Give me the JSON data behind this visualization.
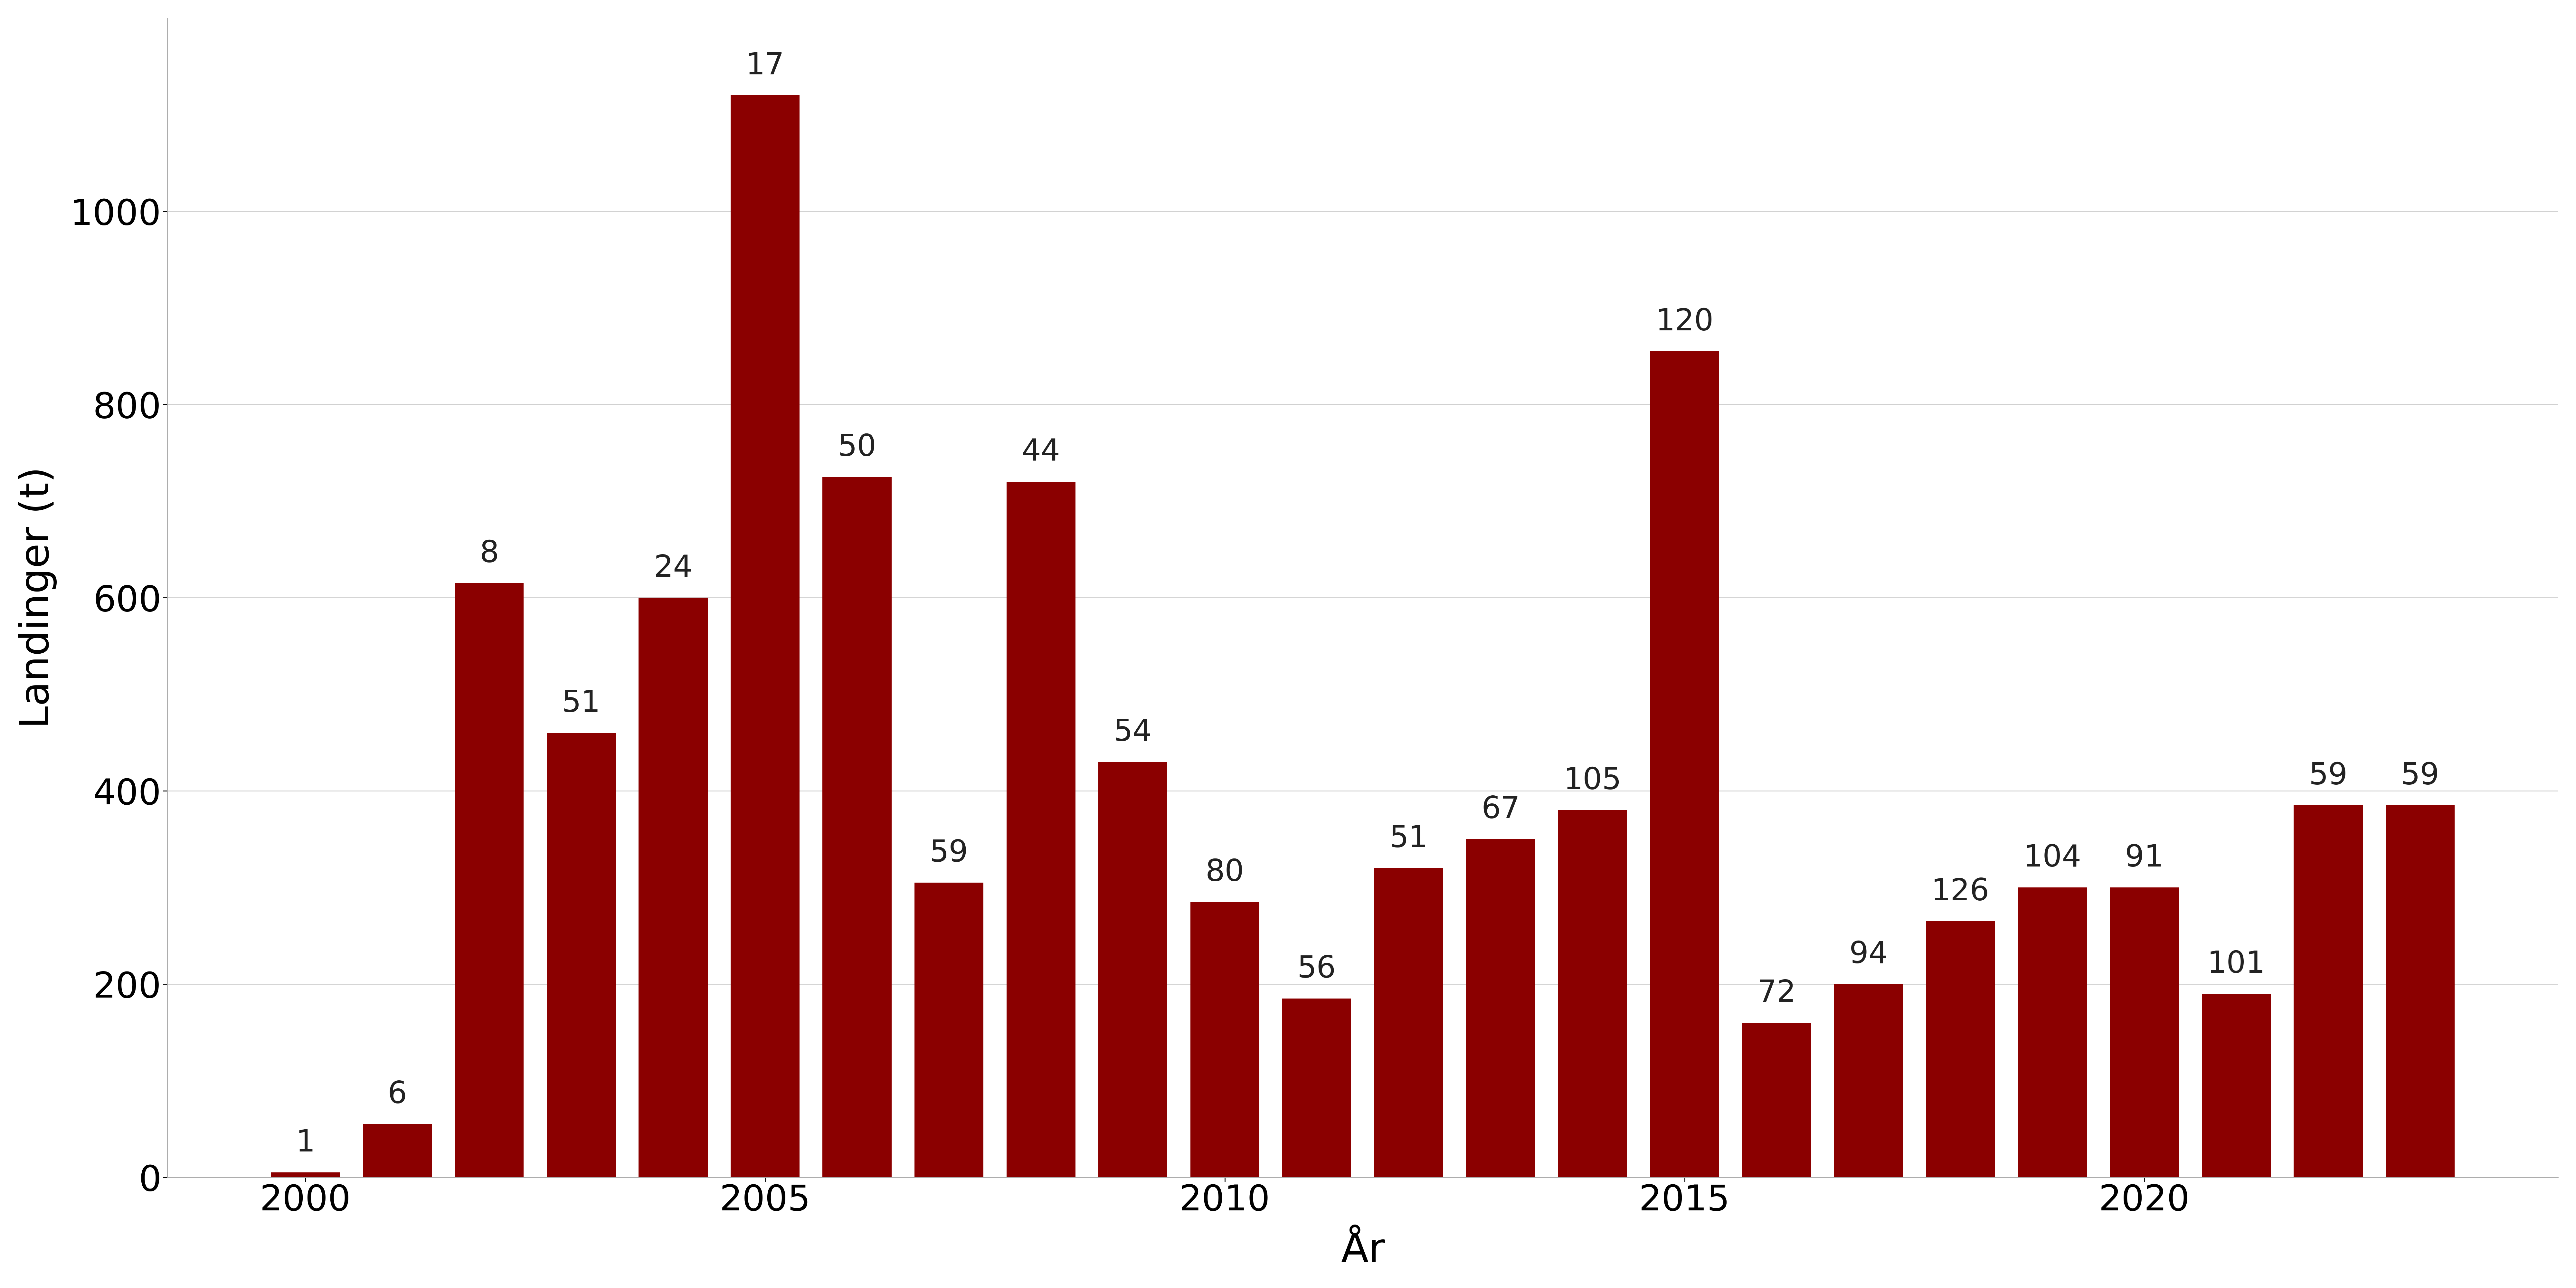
{
  "years": [
    2000,
    2001,
    2002,
    2003,
    2004,
    2005,
    2006,
    2007,
    2008,
    2009,
    2010,
    2011,
    2012,
    2013,
    2014,
    2015,
    2016,
    2017,
    2018,
    2019,
    2020,
    2021,
    2022,
    2023
  ],
  "values": [
    5,
    55,
    615,
    460,
    600,
    1120,
    725,
    305,
    720,
    430,
    285,
    185,
    320,
    350,
    380,
    855,
    160,
    200,
    265,
    300,
    300,
    190,
    385,
    385
  ],
  "vessel_counts": [
    1,
    6,
    8,
    51,
    24,
    17,
    50,
    59,
    44,
    54,
    80,
    56,
    51,
    67,
    105,
    120,
    72,
    94,
    126,
    104,
    91,
    101,
    59,
    59
  ],
  "bar_color": "#8B0000",
  "ylabel": "Landinger (t)",
  "xlabel": "År",
  "ylim": [
    0,
    1200
  ],
  "yticks": [
    0,
    200,
    400,
    600,
    800,
    1000
  ],
  "xticks": [
    2000,
    2005,
    2010,
    2015,
    2020
  ],
  "background_color": "#ffffff",
  "grid_color": "#d0d0d0",
  "label_fontsize": 90,
  "tick_fontsize": 80,
  "annotation_fontsize": 68,
  "bar_width": 0.75,
  "xlim": [
    1998.5,
    2024.5
  ]
}
